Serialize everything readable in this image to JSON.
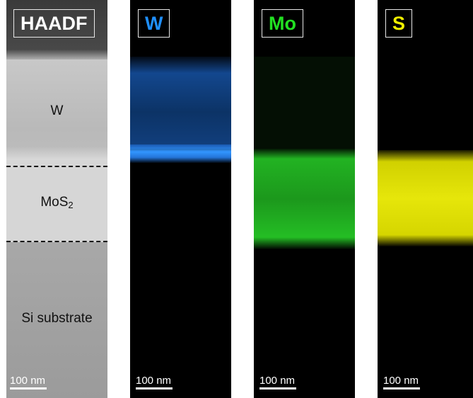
{
  "panels": {
    "haadf": {
      "tag": "HAADF",
      "layers": {
        "top": "W",
        "middle_base": "MoS",
        "middle_sub": "2",
        "bottom": "Si substrate"
      },
      "scale_bar": "100 nm"
    },
    "w": {
      "tag": "W",
      "tag_color": "#1f8fff",
      "scale_bar": "100 nm"
    },
    "mo": {
      "tag": "Mo",
      "tag_color": "#22e022",
      "scale_bar": "100 nm"
    },
    "s": {
      "tag": "S",
      "tag_color": "#f0f000",
      "scale_bar": "100 nm"
    }
  }
}
